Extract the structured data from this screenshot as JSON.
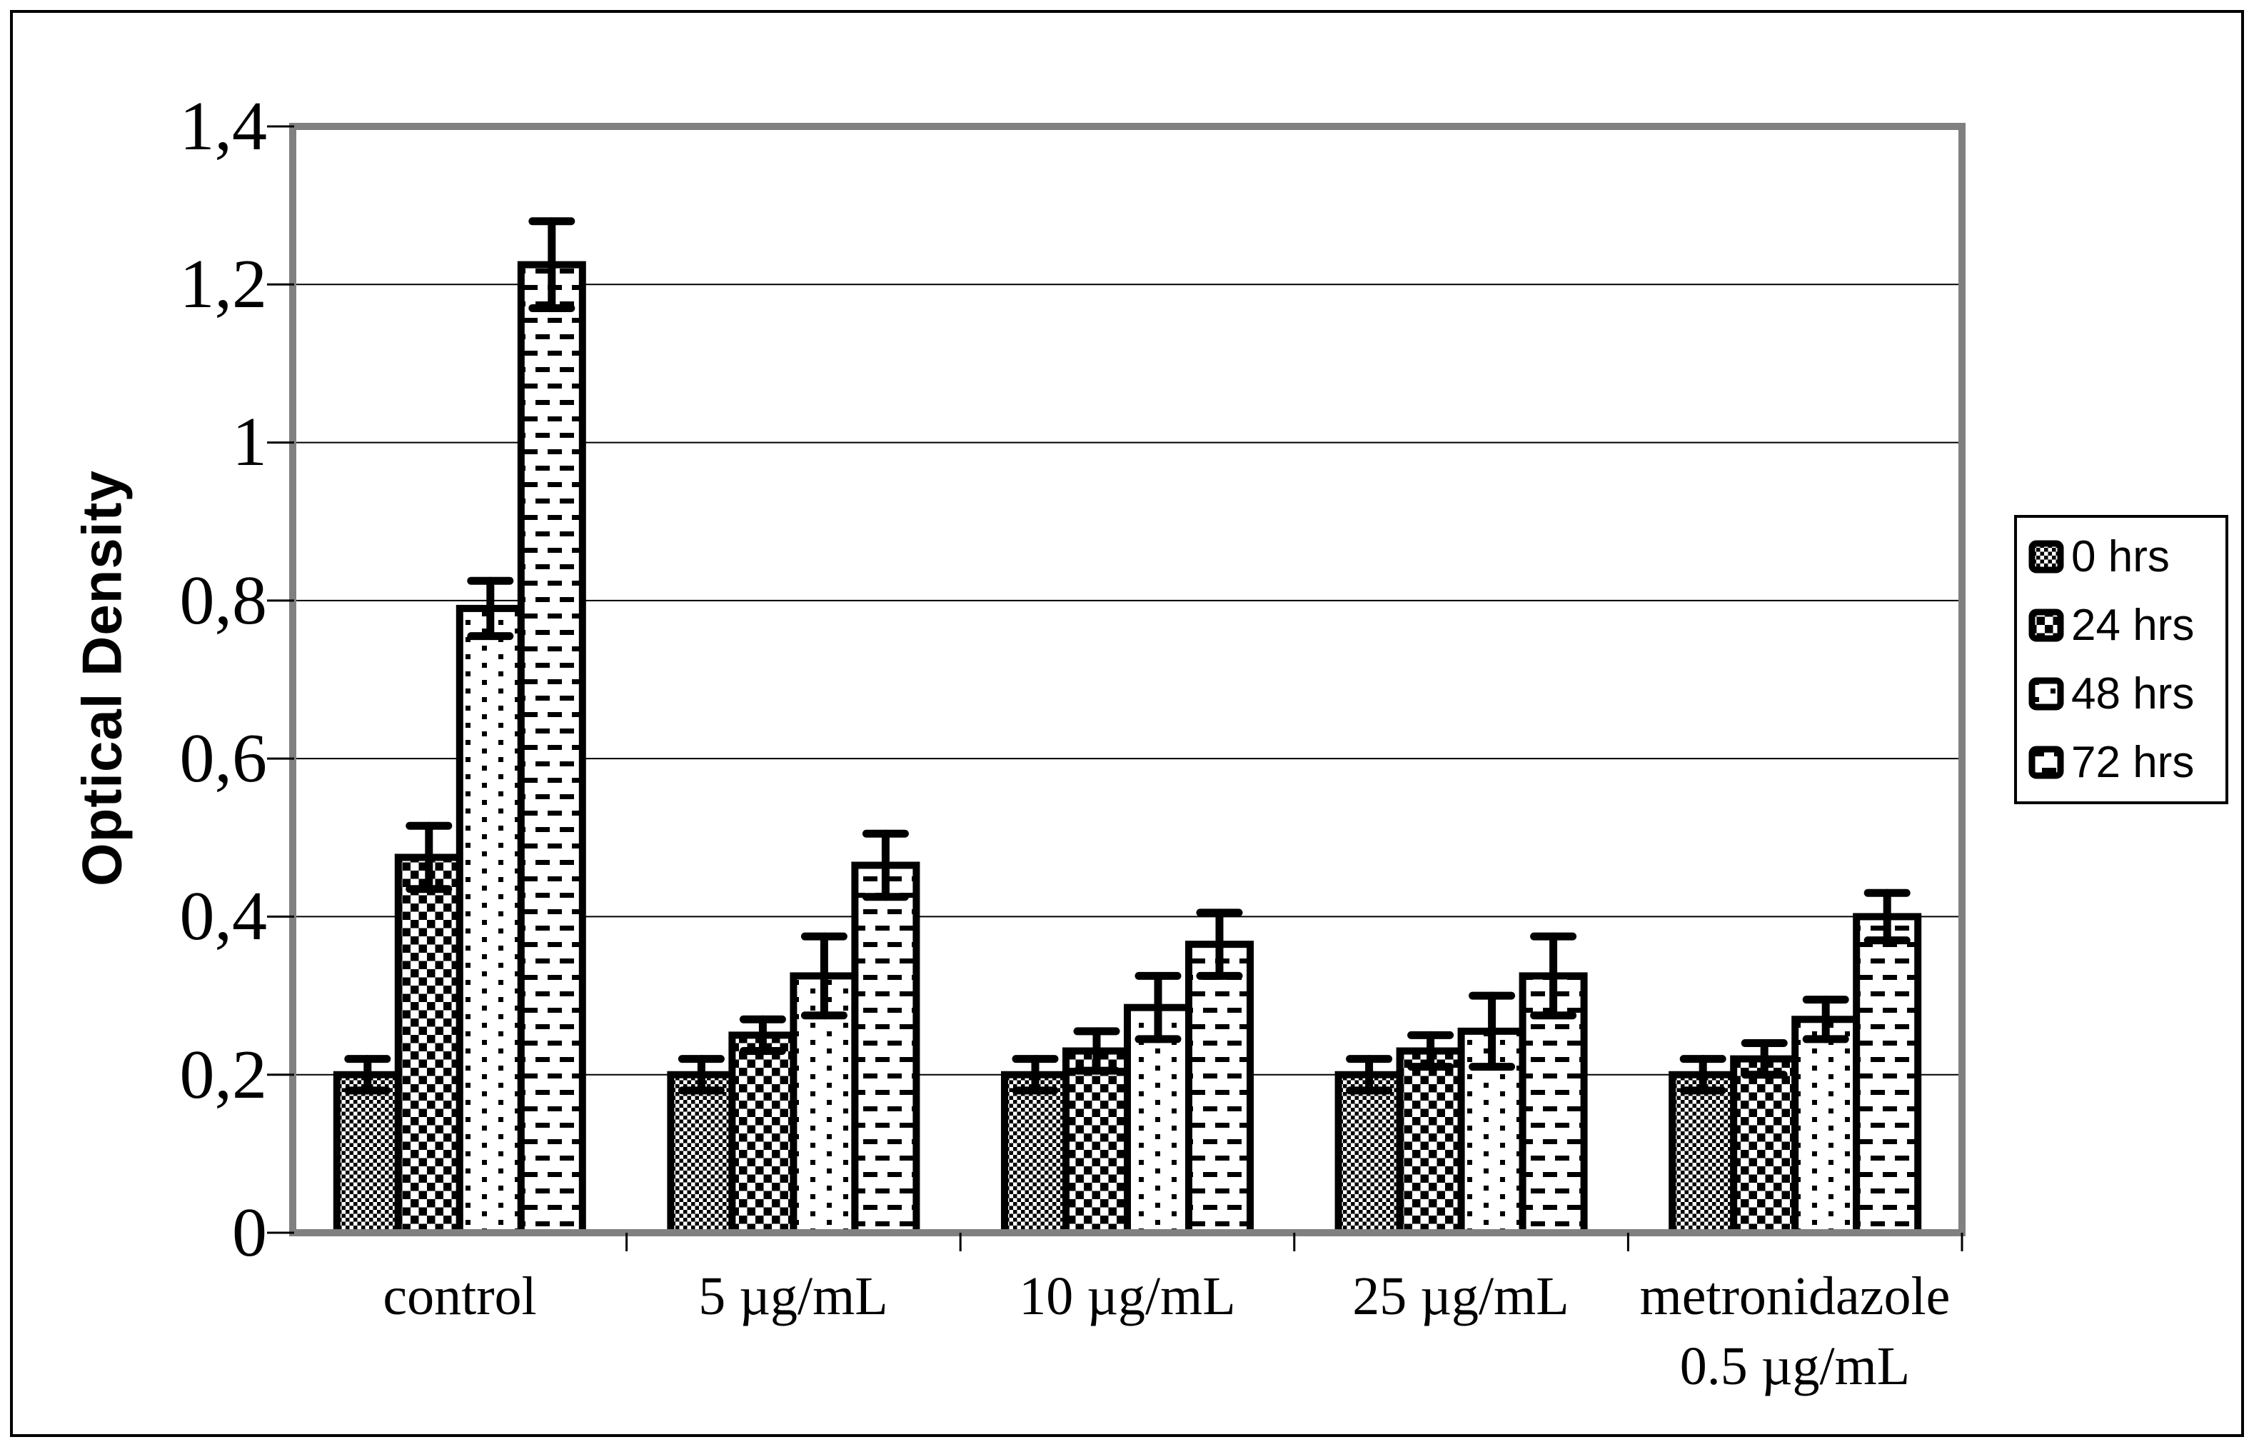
{
  "figure": {
    "ylabel": "Optical Density",
    "background_color": "#ffffff",
    "axis_color": "#808080",
    "ink_color": "#000000"
  },
  "legend": {
    "items": [
      {
        "label": "0 hrs",
        "pattern": "fine-checker"
      },
      {
        "label": "24 hrs",
        "pattern": "coarse-checker"
      },
      {
        "label": "48 hrs",
        "pattern": "sparse-dot"
      },
      {
        "label": "72 hrs",
        "pattern": "brick-dash"
      }
    ]
  },
  "chart_data": {
    "type": "bar",
    "title": "",
    "xlabel": "",
    "ylabel": "Optical Density",
    "ylim": [
      0,
      1.4
    ],
    "yticks": [
      0,
      0.2,
      0.4,
      0.6,
      0.8,
      1.0,
      1.2,
      1.4
    ],
    "ytick_labels": [
      "0",
      "0,2",
      "0,4",
      "0,6",
      "0,8",
      "1",
      "1,2",
      "1,4"
    ],
    "grid": true,
    "legend_position": "right",
    "error_bars": true,
    "categories": [
      "control",
      "5 µg/mL",
      "10 µg/mL",
      "25 µg/mL",
      "metronidazole 0.5 µg/mL"
    ],
    "category_label_lines": [
      [
        "control"
      ],
      [
        "5 µg/mL"
      ],
      [
        "10 µg/mL"
      ],
      [
        "25 µg/mL"
      ],
      [
        "metronidazole",
        "0.5 µg/mL"
      ]
    ],
    "series": [
      {
        "name": "0 hrs",
        "pattern": "fine-checker",
        "values": [
          0.2,
          0.2,
          0.2,
          0.2,
          0.2
        ],
        "errors": [
          0.02,
          0.02,
          0.02,
          0.02,
          0.02
        ]
      },
      {
        "name": "24 hrs",
        "pattern": "coarse-checker",
        "values": [
          0.475,
          0.25,
          0.23,
          0.23,
          0.22
        ],
        "errors": [
          0.04,
          0.02,
          0.025,
          0.02,
          0.02
        ]
      },
      {
        "name": "48 hrs",
        "pattern": "sparse-dot",
        "values": [
          0.79,
          0.325,
          0.285,
          0.255,
          0.27
        ],
        "errors": [
          0.035,
          0.05,
          0.04,
          0.045,
          0.025
        ]
      },
      {
        "name": "72 hrs",
        "pattern": "brick-dash",
        "values": [
          1.225,
          0.465,
          0.365,
          0.325,
          0.4
        ],
        "errors": [
          0.055,
          0.04,
          0.04,
          0.05,
          0.03
        ]
      }
    ]
  }
}
